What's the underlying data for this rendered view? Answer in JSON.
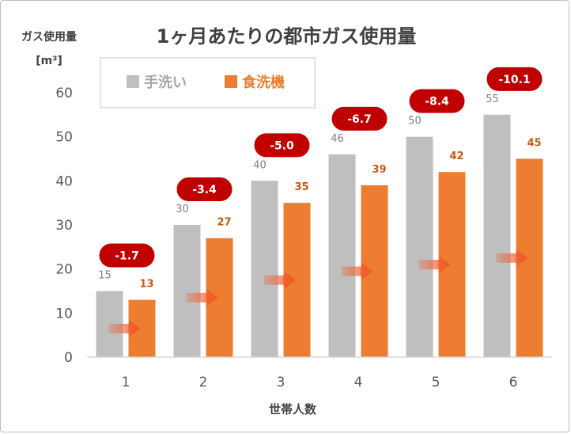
{
  "chart_data": {
    "type": "bar",
    "title": "1ヶ月あたりの都市ガス使用量",
    "ylabel": "ガス使用量",
    "yunit": "[m³]",
    "xlabel": "世帯人数",
    "categories": [
      "1",
      "2",
      "3",
      "4",
      "5",
      "6"
    ],
    "ylim": [
      0,
      60
    ],
    "yticks": [
      0,
      10,
      20,
      30,
      40,
      50,
      60
    ],
    "grid": false,
    "legend_position": "top-left",
    "series": [
      {
        "name": "手洗い",
        "values": [
          15,
          30,
          40,
          46,
          50,
          55
        ],
        "color": "#bfbfbf",
        "label_color": "#808080"
      },
      {
        "name": "食洗機",
        "values": [
          13,
          27,
          35,
          39,
          42,
          45
        ],
        "color": "#ed7d31",
        "label_color": "#c55a11"
      }
    ],
    "difference_labels": [
      "-1.7",
      "-3.4",
      "-5.0",
      "-6.7",
      "-8.4",
      "-10.1"
    ],
    "difference_badge_color": "#c00000",
    "arrow_color": "#f05a28"
  }
}
